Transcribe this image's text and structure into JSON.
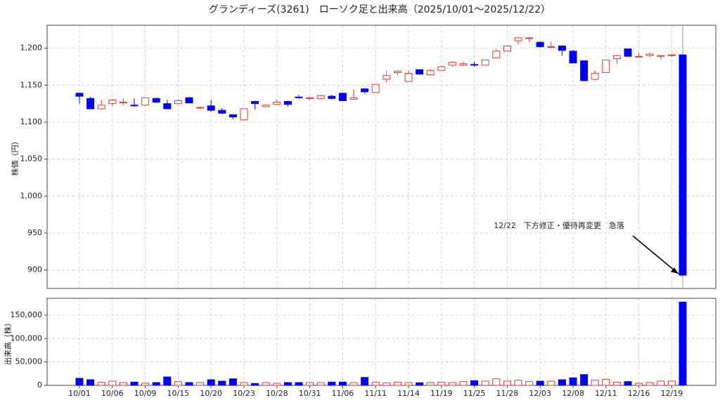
{
  "chart_data": [
    {
      "type": "candlestick",
      "title": "グランディーズ(3261)　ローソク足と出来高（2025/10/01〜2025/12/22）",
      "ylabel": "株価（円）",
      "annotation": "12/22　下方修正・優待再変更　急落",
      "up_color": "#e8362e",
      "down_color": "#0000ff",
      "grid": true,
      "ylim": [
        875,
        1231
      ],
      "yticks": [
        900,
        950,
        {
          "value": 1000,
          "label": "1,000"
        },
        {
          "value": 1050,
          "label": "1,050"
        },
        {
          "value": 1100,
          "label": "1,100"
        },
        {
          "value": 1150,
          "label": "1,150"
        },
        {
          "value": 1200,
          "label": "1,200"
        }
      ],
      "open": [
        1139,
        1132,
        1118,
        1125,
        1126,
        1123,
        1123,
        1132,
        1125,
        1125,
        1133,
        1119,
        1122,
        1116,
        1110,
        1103,
        1128,
        1121,
        1124,
        1128,
        1134,
        1132,
        1132,
        1135,
        1139,
        1131,
        1145,
        1140,
        1158,
        1167,
        1155,
        1171,
        1164,
        1170,
        1177,
        1177,
        1178,
        1177,
        1187,
        1196,
        1210,
        1213,
        1208,
        1201,
        1203,
        1196,
        1183,
        1158,
        1167,
        1186,
        1199,
        1188,
        1190,
        1189,
        1190,
        1191
      ],
      "high": [
        1140,
        1134,
        1130,
        1131,
        1132,
        1132,
        1133,
        1133,
        1130,
        1131,
        1134,
        1121,
        1130,
        1119,
        1110,
        1118,
        1129,
        1124,
        1131,
        1129,
        1137,
        1134,
        1137,
        1137,
        1140,
        1144,
        1146,
        1152,
        1170,
        1170,
        1170,
        1171,
        1172,
        1176,
        1182,
        1182,
        1182,
        1184,
        1199,
        1203,
        1215,
        1215,
        1209,
        1209,
        1203,
        1198,
        1183,
        1170,
        1184,
        1191,
        1199,
        1194,
        1194,
        1190,
        1192,
        1191
      ],
      "low": [
        1125,
        1118,
        1117,
        1122,
        1123,
        1121,
        1122,
        1126,
        1118,
        1124,
        1126,
        1118,
        1114,
        1111,
        1104,
        1103,
        1117,
        1120,
        1123,
        1121,
        1132,
        1130,
        1131,
        1131,
        1129,
        1131,
        1139,
        1140,
        1154,
        1163,
        1155,
        1164,
        1164,
        1170,
        1175,
        1176,
        1175,
        1177,
        1187,
        1196,
        1205,
        1208,
        1201,
        1201,
        1190,
        1180,
        1156,
        1157,
        1167,
        1179,
        1189,
        1188,
        1188,
        1185,
        1188,
        892
      ],
      "close": [
        1135,
        1118,
        1123,
        1130,
        1127,
        1122,
        1133,
        1127,
        1118,
        1129,
        1126,
        1120,
        1116,
        1112,
        1107,
        1118,
        1125,
        1123,
        1127,
        1124,
        1133,
        1133,
        1136,
        1132,
        1129,
        1133,
        1141,
        1151,
        1163,
        1169,
        1166,
        1165,
        1170,
        1175,
        1181,
        1179,
        1177,
        1184,
        1196,
        1203,
        1214,
        1214,
        1202,
        1202,
        1197,
        1180,
        1156,
        1166,
        1184,
        1190,
        1189,
        1189,
        1192,
        1190,
        1191,
        893
      ]
    },
    {
      "type": "bar",
      "ylabel": "出来高（株）",
      "grid": true,
      "ylim": [
        0,
        186000
      ],
      "yticks": [
        0,
        {
          "value": 50000,
          "label": "50,000"
        },
        {
          "value": 100000,
          "label": "100,000"
        },
        {
          "value": 150000,
          "label": "150,000"
        }
      ],
      "categories": [
        "10/01",
        null,
        null,
        "10/06",
        null,
        null,
        "10/09",
        null,
        null,
        "10/15",
        null,
        null,
        "10/20",
        null,
        null,
        "10/23",
        null,
        null,
        "10/28",
        null,
        null,
        "10/31",
        null,
        null,
        "11/06",
        null,
        null,
        "11/11",
        null,
        null,
        "11/14",
        null,
        null,
        "11/19",
        null,
        null,
        "11/25",
        null,
        null,
        "11/28",
        null,
        null,
        "12/03",
        null,
        null,
        "12/08",
        null,
        null,
        "12/11",
        null,
        null,
        "12/16",
        null,
        null,
        "12/19",
        null
      ],
      "values": [
        15000,
        12000,
        7000,
        9000,
        6000,
        7000,
        4500,
        6000,
        18000,
        8000,
        6000,
        6000,
        12000,
        9000,
        14000,
        6000,
        4000,
        6000,
        4500,
        6000,
        6000,
        6000,
        6000,
        7000,
        7000,
        6000,
        17000,
        7000,
        5500,
        7000,
        6000,
        5500,
        6000,
        7000,
        6000,
        8000,
        10000,
        9000,
        14000,
        9000,
        11000,
        8000,
        9000,
        9000,
        12000,
        16000,
        23000,
        11000,
        13000,
        7000,
        8000,
        4500,
        6000,
        9000,
        9000,
        178000
      ]
    }
  ]
}
